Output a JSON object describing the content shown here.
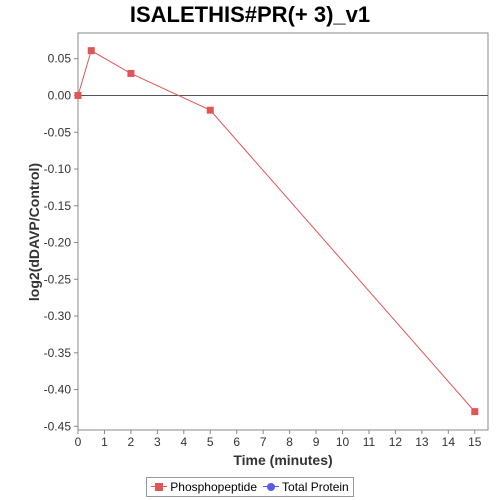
{
  "chart_data": {
    "type": "line",
    "title": "ISALETHIS#PR(+ 3)_v1",
    "xlabel": "Time (minutes)",
    "ylabel": "log2(dDAVP/Control)",
    "xlim": [
      0,
      15.5
    ],
    "ylim": [
      -0.455,
      0.085
    ],
    "x_ticks": [
      0,
      1,
      2,
      3,
      4,
      5,
      6,
      7,
      8,
      9,
      10,
      11,
      12,
      13,
      14,
      15
    ],
    "y_ticks": [
      0.05,
      0.0,
      -0.05,
      -0.1,
      -0.15,
      -0.2,
      -0.25,
      -0.3,
      -0.35,
      -0.4,
      -0.45
    ],
    "y_tick_labels": [
      "0.05",
      "0.00",
      "-0.05",
      "-0.10",
      "-0.15",
      "-0.20",
      "-0.25",
      "-0.30",
      "-0.35",
      "-0.40",
      "-0.45"
    ],
    "zero_line": true,
    "grid": false,
    "legend_position": "bottom-center",
    "series": [
      {
        "name": "Phosphopeptide",
        "color": "#e05656",
        "marker": "square",
        "x": [
          0,
          0.5,
          2,
          5,
          15
        ],
        "y": [
          0.0,
          0.061,
          0.03,
          -0.02,
          -0.43
        ]
      },
      {
        "name": "Total Protein",
        "color": "#5a5aee",
        "marker": "circle",
        "x": [],
        "y": []
      }
    ]
  }
}
